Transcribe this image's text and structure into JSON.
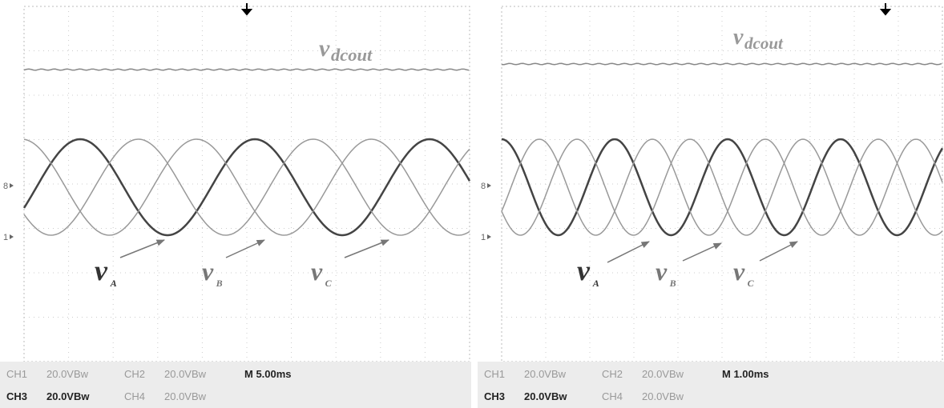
{
  "panels": [
    {
      "dc_label": {
        "symbol": "v",
        "subscript": "dcout"
      },
      "phase_labels": [
        {
          "symbol": "v",
          "subscript": "A"
        },
        {
          "symbol": "v",
          "subscript": "B"
        },
        {
          "symbol": "v",
          "subscript": "C"
        }
      ],
      "markers": [
        "8",
        "1"
      ],
      "status": [
        [
          "CH1",
          "20.0VBw",
          "CH2",
          "20.0VBw",
          "M 5.00ms"
        ],
        [
          "CH3",
          "20.0VBw",
          "CH4",
          "20.0VBw"
        ]
      ]
    },
    {
      "dc_label": {
        "symbol": "v",
        "subscript": "dcout"
      },
      "phase_labels": [
        {
          "symbol": "v",
          "subscript": "A"
        },
        {
          "symbol": "v",
          "subscript": "B"
        },
        {
          "symbol": "v",
          "subscript": "C"
        }
      ],
      "markers": [
        "8",
        "1"
      ],
      "status": [
        [
          "CH1",
          "20.0VBw",
          "CH2",
          "20.0VBw",
          "M 1.00ms"
        ],
        [
          "CH3",
          "20.0VBw",
          "CH4",
          "20.0VBw"
        ]
      ]
    }
  ]
}
